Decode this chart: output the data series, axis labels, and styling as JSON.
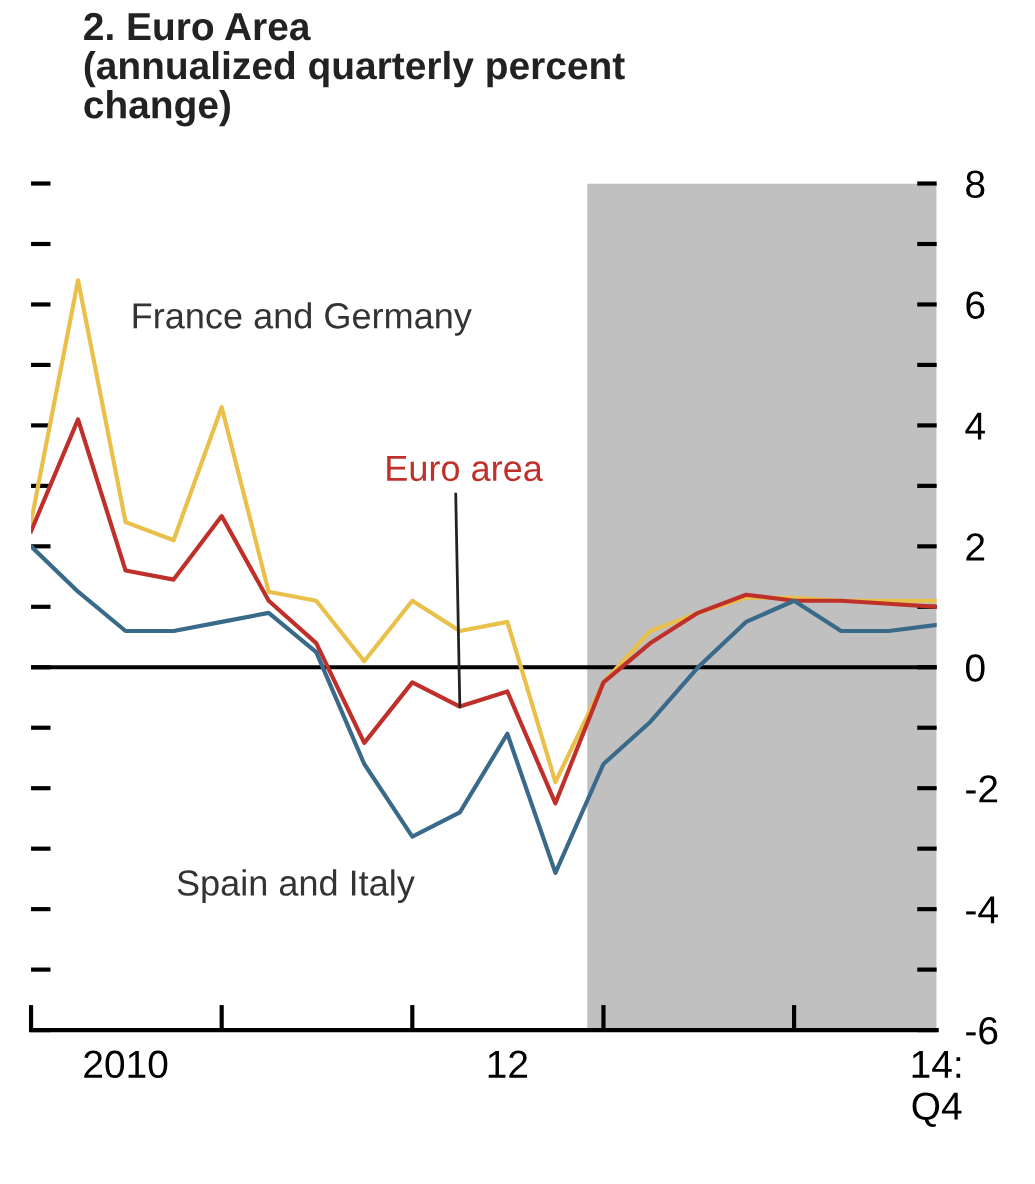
{
  "chart_data": {
    "type": "line",
    "title": "2. Euro Area\n(annualized quarterly percent\nchange)",
    "x": [
      "2010-01",
      "2010-04",
      "2010-07",
      "2010-10",
      "2011-01",
      "2011-04",
      "2011-07",
      "2011-10",
      "2012-01",
      "2012-04",
      "2012-07",
      "2012-10",
      "2013-01",
      "2013-04",
      "2013-07",
      "2013-10",
      "2014-01",
      "2014-04",
      "2014-07",
      "2014-10"
    ],
    "xlim": [
      "2010-01",
      "2014-10"
    ],
    "xticks": [
      {
        "value": "2010-07",
        "label": "2010"
      },
      {
        "value": "2012-07",
        "label": "12"
      },
      {
        "value": "2014-10",
        "label": "14:\nQ4"
      }
    ],
    "series": [
      {
        "name": "France and Germany",
        "color": "#e8c04a",
        "values": [
          2.4,
          6.4,
          2.4,
          2.1,
          4.3,
          1.25,
          1.1,
          0.1,
          1.1,
          0.6,
          0.75,
          -1.9,
          -0.25,
          0.6,
          0.9,
          1.15,
          1.15,
          1.1,
          1.1,
          1.1
        ]
      },
      {
        "name": "Euro area",
        "color": "#c0302a",
        "values": [
          2.25,
          4.1,
          1.6,
          1.45,
          2.5,
          1.1,
          0.4,
          -1.25,
          -0.25,
          -0.65,
          -0.4,
          -2.25,
          -0.25,
          0.4,
          0.9,
          1.2,
          1.1,
          1.1,
          1.05,
          1.0
        ]
      },
      {
        "name": "Spain and Italy",
        "color": "#3a6a8a",
        "values": [
          2.0,
          1.25,
          0.6,
          0.6,
          0.75,
          0.9,
          0.25,
          -1.6,
          -2.8,
          -2.4,
          -1.1,
          -3.4,
          -1.6,
          -0.9,
          0.0,
          0.75,
          1.1,
          0.6,
          0.6,
          0.7
        ]
      }
    ],
    "ylim": [
      -6,
      8
    ],
    "yticks": [
      -6,
      -4,
      -2,
      0,
      2,
      4,
      6,
      8
    ],
    "bands": [
      {
        "axis": "x",
        "from": "2012-12",
        "to": "2014-10",
        "color": "#c0c0c0"
      }
    ],
    "ref_lines": [
      {
        "axis": "y",
        "value": 0,
        "color": "#000000"
      }
    ],
    "grid": false,
    "legend": false
  }
}
